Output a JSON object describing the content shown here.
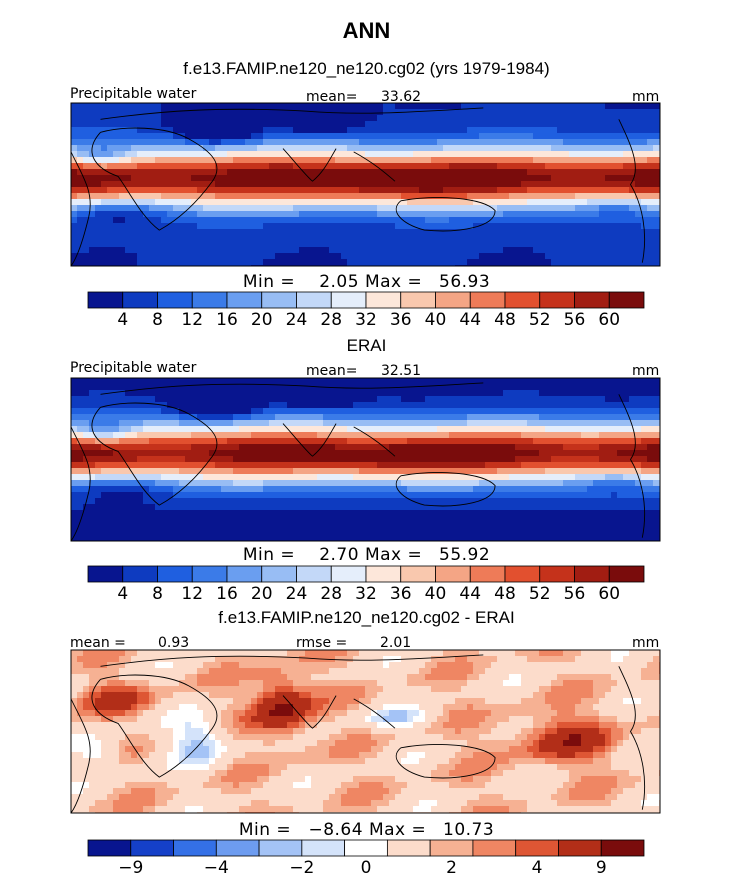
{
  "title": "ANN",
  "colors": {
    "palette": [
      "#08158f",
      "#0e3bc0",
      "#1f5fe0",
      "#3b7be8",
      "#6a9ef0",
      "#98bdf4",
      "#c3d8f8",
      "#e5eefb",
      "#fde7da",
      "#f9c8ae",
      "#f4a585",
      "#ee7b58",
      "#e2502f",
      "#c5321b",
      "#a11d12",
      "#7a0c0c"
    ],
    "diff_palette": [
      "#08158f",
      "#1540c8",
      "#3470e6",
      "#6d9cf0",
      "#a4c3f6",
      "#d4e3fa",
      "#ffffff",
      "#fcdccb",
      "#f6b193",
      "#ef8663",
      "#de5634",
      "#b22e18",
      "#7a0c0c"
    ]
  },
  "chart_data": [
    {
      "type": "heatmap",
      "title": "f.e13.FAMIP.ne120_ne120.cg02 (yrs 1979-1984)",
      "variable": "Precipitable water",
      "mean_label": "mean=",
      "mean": "33.62",
      "units": "mm",
      "min_label": "Min =",
      "min": "2.05",
      "max_label": "Max =",
      "max": "56.93",
      "colorbar_ticks": [
        "4",
        "8",
        "12",
        "16",
        "20",
        "24",
        "28",
        "32",
        "36",
        "40",
        "44",
        "48",
        "52",
        "56",
        "60"
      ]
    },
    {
      "type": "heatmap",
      "title": "ERAI",
      "variable": "Precipitable water",
      "mean_label": "mean=",
      "mean": "32.51",
      "units": "mm",
      "min_label": "Min =",
      "min": "2.70",
      "max_label": "Max =",
      "max": "55.92",
      "colorbar_ticks": [
        "4",
        "8",
        "12",
        "16",
        "20",
        "24",
        "28",
        "32",
        "36",
        "40",
        "44",
        "48",
        "52",
        "56",
        "60"
      ]
    },
    {
      "type": "heatmap",
      "title": "f.e13.FAMIP.ne120_ne120.cg02 - ERAI",
      "mean_label": "mean =",
      "mean": "0.93",
      "rmse_label": "rmse =",
      "rmse": "2.01",
      "units": "mm",
      "min_label": "Min =",
      "min": "−8.64",
      "max_label": "Max =",
      "max": "10.73",
      "colorbar_ticks": [
        "−9",
        "−4",
        "−2",
        "0",
        "2",
        "4",
        "9"
      ]
    }
  ]
}
